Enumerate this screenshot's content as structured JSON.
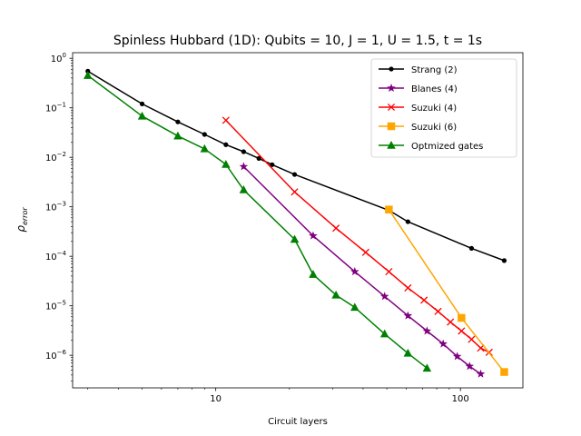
{
  "chart_data": {
    "type": "line",
    "title": "Spinless Hubbard (1D): Qubits = 10, J = 1, U = 1.5, t = 1s",
    "xlabel": "Circuit layers",
    "ylabel": "ρ_error",
    "ylabel_main": "ρ",
    "ylabel_sub": "error",
    "xscale": "log",
    "yscale": "log",
    "xlim": [
      2.6,
      180
    ],
    "ylim": [
      2.2e-07,
      1.3
    ],
    "x_ticks": [
      {
        "value": 10,
        "label": "10"
      },
      {
        "value": 100,
        "label": "100"
      }
    ],
    "y_ticks": [
      {
        "value": 1e-06,
        "base": "10",
        "exp": "−6"
      },
      {
        "value": 1e-05,
        "base": "10",
        "exp": "−5"
      },
      {
        "value": 0.0001,
        "base": "10",
        "exp": "−4"
      },
      {
        "value": 0.001,
        "base": "10",
        "exp": "−3"
      },
      {
        "value": 0.01,
        "base": "10",
        "exp": "−2"
      },
      {
        "value": 0.1,
        "base": "10",
        "exp": "−1"
      },
      {
        "value": 1,
        "base": "10",
        "exp": "0"
      }
    ],
    "grid": false,
    "legend_position": "top-right",
    "series": [
      {
        "name": "Strang (2)",
        "color": "#000000",
        "marker": "dot",
        "x": [
          3,
          5,
          7,
          9,
          11,
          13,
          15,
          17,
          21,
          51,
          61,
          111,
          151
        ],
        "y": [
          0.55,
          0.12,
          0.052,
          0.029,
          0.018,
          0.013,
          0.0095,
          0.0071,
          0.0045,
          0.00085,
          0.0005,
          0.000145,
          8.2e-05
        ]
      },
      {
        "name": "Blanes (4)",
        "color": "#800080",
        "marker": "star",
        "x": [
          13,
          25,
          37,
          49,
          61,
          73,
          85,
          97,
          109,
          121
        ],
        "y": [
          0.0065,
          0.00026,
          4.9e-05,
          1.55e-05,
          6.3e-06,
          3.1e-06,
          1.7e-06,
          9.5e-07,
          6e-07,
          4.2e-07
        ]
      },
      {
        "name": "Suzuki (4)",
        "color": "#ff0000",
        "marker": "x",
        "x": [
          11,
          21,
          31,
          41,
          51,
          61,
          71,
          81,
          91,
          101,
          111,
          121,
          131
        ],
        "y": [
          0.056,
          0.002,
          0.00037,
          0.00012,
          4.9e-05,
          2.3e-05,
          1.3e-05,
          7.7e-06,
          4.7e-06,
          3.1e-06,
          2.1e-06,
          1.4e-06,
          1.15e-06
        ]
      },
      {
        "name": "Suzuki (6)",
        "color": "#ffa500",
        "marker": "square",
        "x": [
          51,
          101,
          151
        ],
        "y": [
          0.00088,
          5.7e-06,
          4.6e-07
        ]
      },
      {
        "name": "Optmized gates",
        "color": "#008000",
        "marker": "triangle",
        "x": [
          3,
          5,
          7,
          9,
          11,
          13,
          21,
          25,
          31,
          37,
          49,
          61,
          73
        ],
        "y": [
          0.45,
          0.068,
          0.027,
          0.0148,
          0.0072,
          0.0022,
          0.00022,
          4.3e-05,
          1.65e-05,
          9.3e-06,
          2.7e-06,
          1.1e-06,
          5.5e-07
        ]
      }
    ]
  }
}
